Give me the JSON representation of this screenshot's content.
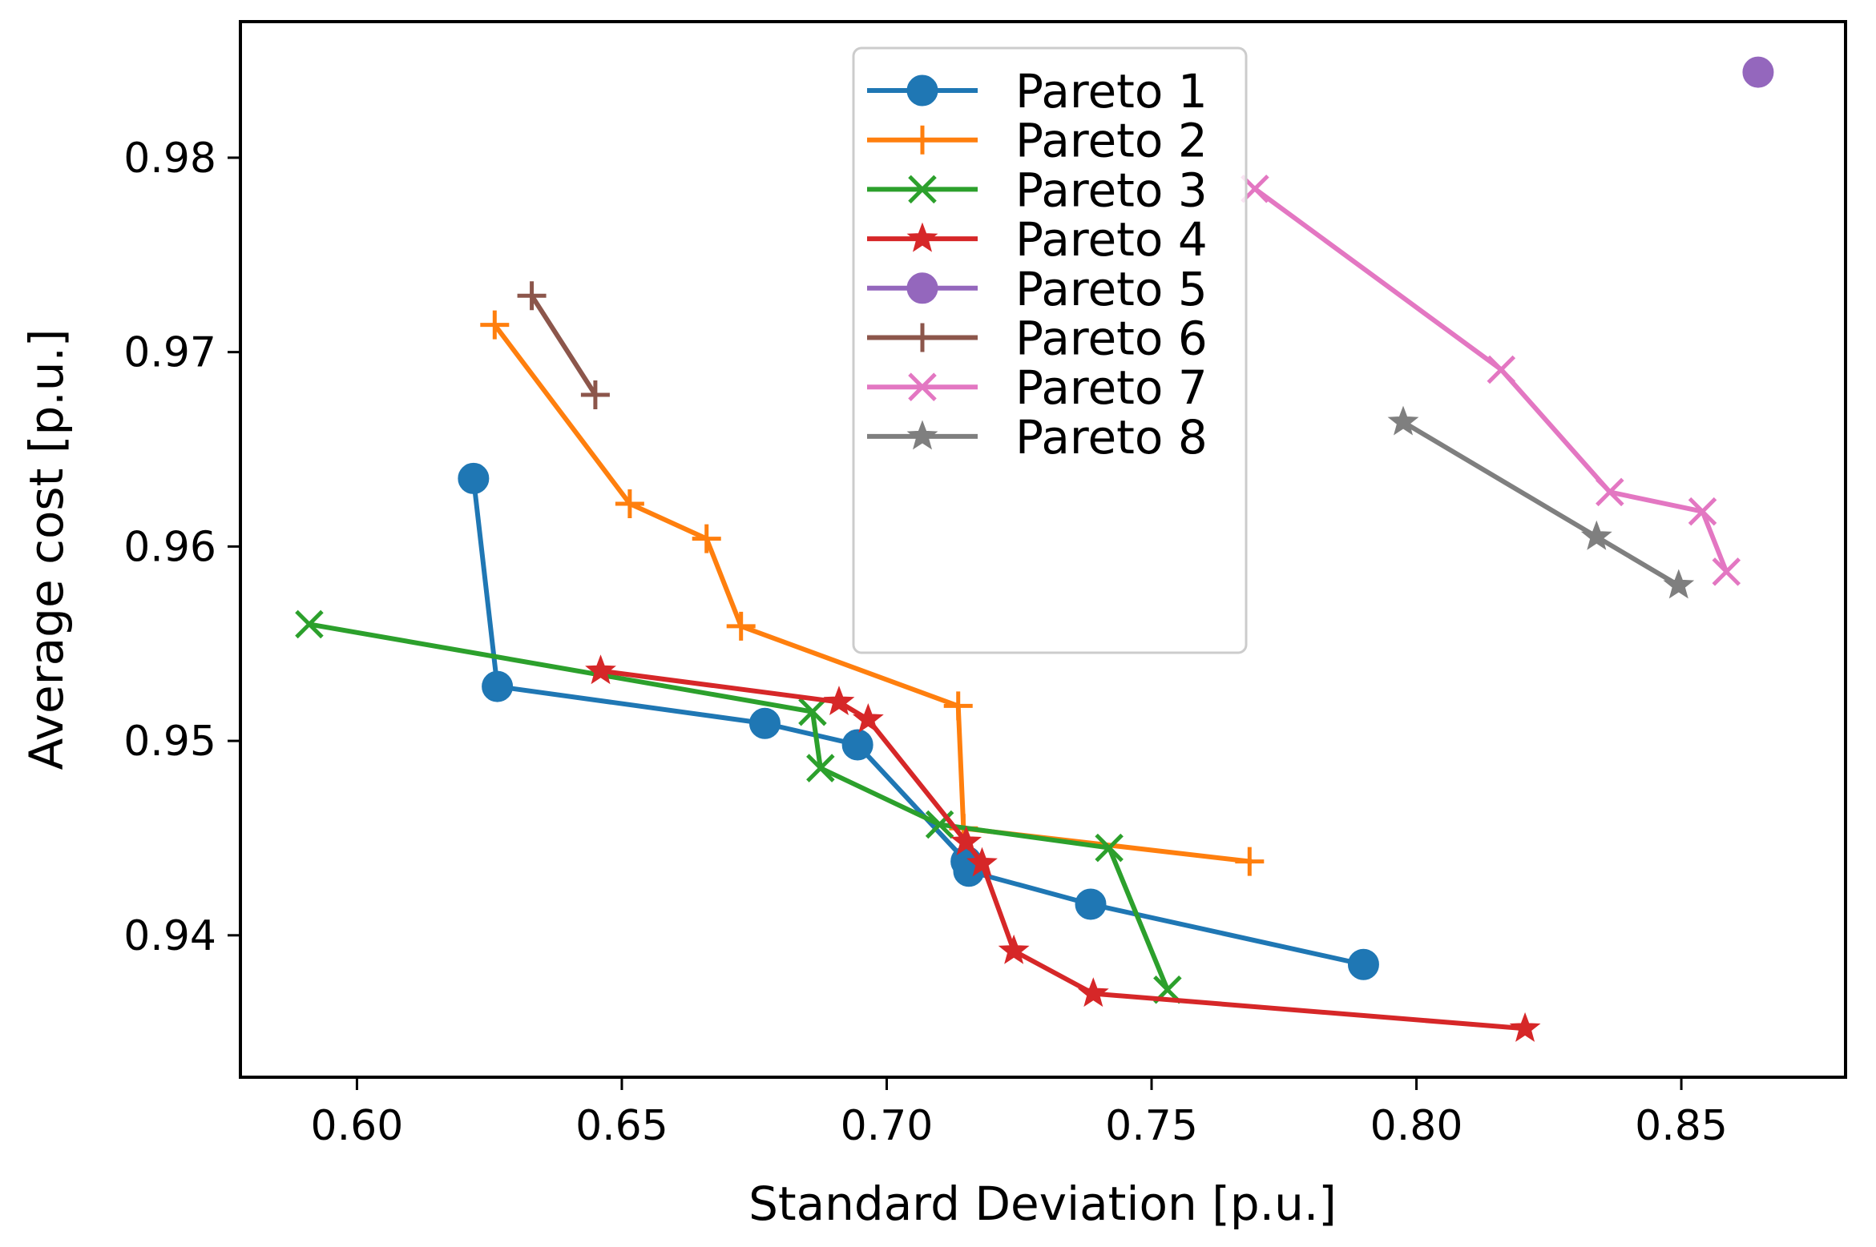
{
  "chart_data": {
    "type": "line",
    "title": "",
    "xlabel": "Standard Deviation [p.u.]",
    "ylabel": "Average cost [p.u.]",
    "xlim": [
      0.578,
      0.881
    ],
    "ylim": [
      0.9327,
      0.987
    ],
    "grid": false,
    "legend_position": "top-center",
    "x_ticks": [
      0.6,
      0.65,
      0.7,
      0.75,
      0.8,
      0.85
    ],
    "x_tick_labels": [
      "0.60",
      "0.65",
      "0.70",
      "0.75",
      "0.80",
      "0.85"
    ],
    "y_ticks": [
      0.94,
      0.95,
      0.96,
      0.97,
      0.98
    ],
    "y_tick_labels": [
      "0.94",
      "0.95",
      "0.96",
      "0.97",
      "0.98"
    ],
    "series": [
      {
        "name": "Pareto 1",
        "color": "#1f77b4",
        "marker": "circle",
        "x": [
          0.622,
          0.6265,
          0.677,
          0.6945,
          0.715,
          0.7155,
          0.7385,
          0.79
        ],
        "y": [
          0.9635,
          0.9528,
          0.9509,
          0.9498,
          0.9438,
          0.9433,
          0.9416,
          0.9385
        ]
      },
      {
        "name": "Pareto 2",
        "color": "#ff7f0e",
        "marker": "plus",
        "x": [
          0.626,
          0.6515,
          0.666,
          0.6725,
          0.7135,
          0.7145,
          0.7685
        ],
        "y": [
          0.9714,
          0.9622,
          0.9604,
          0.9559,
          0.9518,
          0.9455,
          0.9438
        ]
      },
      {
        "name": "Pareto 3",
        "color": "#2ca02c",
        "marker": "x",
        "x": [
          0.591,
          0.686,
          0.6875,
          0.71,
          0.742,
          0.753
        ],
        "y": [
          0.956,
          0.9515,
          0.9486,
          0.9457,
          0.9445,
          0.9372
        ]
      },
      {
        "name": "Pareto 4",
        "color": "#d62728",
        "marker": "star",
        "x": [
          0.646,
          0.691,
          0.6965,
          0.715,
          0.718,
          0.724,
          0.739,
          0.8205
        ],
        "y": [
          0.9536,
          0.952,
          0.9511,
          0.9448,
          0.9437,
          0.9392,
          0.937,
          0.9352
        ]
      },
      {
        "name": "Pareto 5",
        "color": "#9467bd",
        "marker": "circle",
        "x": [
          0.8645
        ],
        "y": [
          0.9844
        ]
      },
      {
        "name": "Pareto 6",
        "color": "#8c564b",
        "marker": "plus",
        "x": [
          0.633,
          0.645
        ],
        "y": [
          0.9729,
          0.9678
        ]
      },
      {
        "name": "Pareto 7",
        "color": "#e377c2",
        "marker": "x",
        "x": [
          0.7695,
          0.816,
          0.8365,
          0.854,
          0.8585
        ],
        "y": [
          0.9784,
          0.9691,
          0.9628,
          0.9618,
          0.9587
        ]
      },
      {
        "name": "Pareto 8",
        "color": "#7f7f7f",
        "marker": "star",
        "x": [
          0.7975,
          0.834,
          0.8495
        ],
        "y": [
          0.9664,
          0.9605,
          0.958
        ]
      }
    ]
  }
}
